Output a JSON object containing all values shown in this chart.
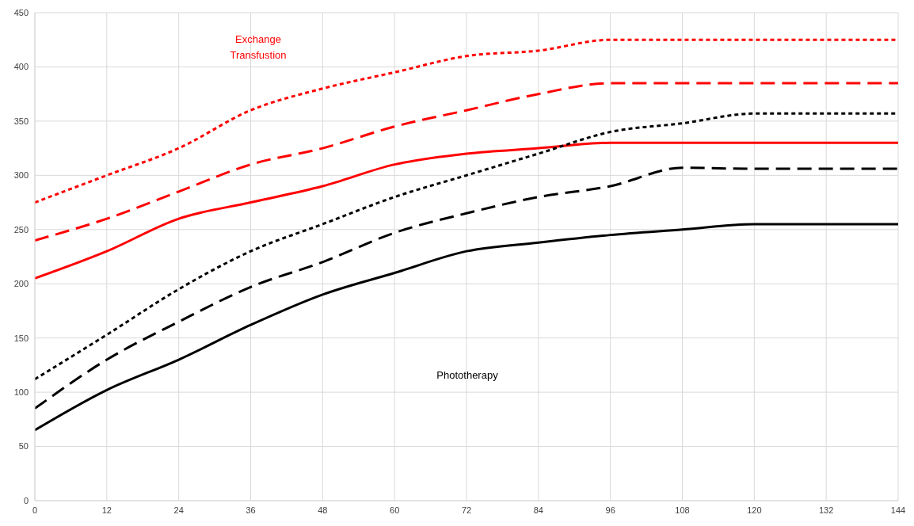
{
  "chart_data": {
    "type": "line",
    "x": [
      0,
      12,
      24,
      36,
      48,
      60,
      72,
      84,
      96,
      108,
      120,
      132,
      144
    ],
    "series": [
      {
        "color": "#ff0000",
        "line_style": "dotted",
        "values": [
          275,
          300,
          325,
          360,
          380,
          395,
          410,
          415,
          425,
          425,
          425,
          425,
          425
        ]
      },
      {
        "color": "#ff0000",
        "line_style": "dashed",
        "values": [
          240,
          260,
          285,
          310,
          325,
          345,
          360,
          375,
          385,
          385,
          385,
          385,
          385
        ]
      },
      {
        "color": "#ff0000",
        "line_style": "solid",
        "values": [
          205,
          230,
          260,
          275,
          290,
          310,
          320,
          325,
          330,
          330,
          330,
          330,
          330
        ]
      },
      {
        "color": "#000000",
        "line_style": "dotted",
        "values": [
          112,
          153,
          195,
          230,
          255,
          280,
          300,
          320,
          340,
          348,
          357,
          357,
          357
        ]
      },
      {
        "color": "#000000",
        "line_style": "dashed",
        "values": [
          85,
          130,
          165,
          197,
          220,
          247,
          265,
          280,
          290,
          307,
          306,
          306,
          306
        ]
      },
      {
        "color": "#000000",
        "line_style": "solid",
        "values": [
          65,
          102,
          130,
          162,
          190,
          210,
          230,
          238,
          245,
          250,
          255,
          255,
          255
        ]
      }
    ],
    "xlim": [
      0,
      144
    ],
    "xticks": [
      0,
      12,
      24,
      36,
      48,
      60,
      72,
      84,
      96,
      108,
      120,
      132,
      144
    ],
    "ylim": [
      0,
      450
    ],
    "yticks": [
      0,
      50,
      100,
      150,
      200,
      250,
      300,
      350,
      400,
      450
    ],
    "grid": true,
    "marker": "none",
    "annotations": [
      "Exchange\nTransfustion",
      "Phototherapy"
    ]
  }
}
